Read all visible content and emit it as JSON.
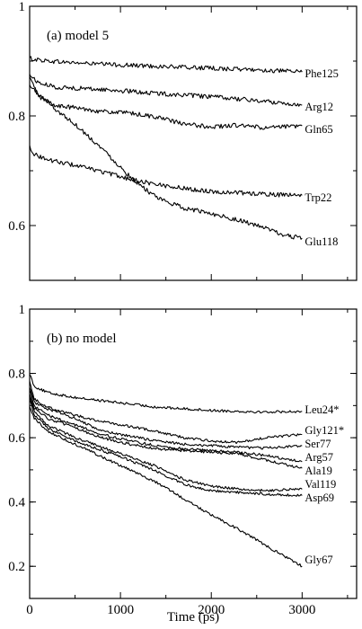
{
  "chart_data": [
    {
      "type": "line",
      "title": "(a) model 5",
      "xlabel": "",
      "ylabel": "",
      "xlim": [
        0,
        3600
      ],
      "ylim": [
        0.5,
        1.0
      ],
      "x_ticks": [
        0,
        1000,
        2000,
        3000
      ],
      "x_tick_labels": [
        "",
        "",
        "",
        ""
      ],
      "y_ticks": [
        0.6,
        0.8,
        1.0
      ],
      "y_tick_labels": [
        "0.6",
        "0.8",
        "1"
      ],
      "grid": false,
      "legend": "inline labels at line ends",
      "series": [
        {
          "name": "Phe125",
          "x": [
            0,
            100,
            300,
            600,
            1000,
            1500,
            2000,
            2500,
            3000
          ],
          "y": [
            0.905,
            0.902,
            0.899,
            0.896,
            0.893,
            0.89,
            0.887,
            0.884,
            0.88
          ]
        },
        {
          "name": "Arg12",
          "x": [
            0,
            100,
            300,
            600,
            1000,
            1500,
            2000,
            2500,
            3000
          ],
          "y": [
            0.875,
            0.86,
            0.852,
            0.85,
            0.846,
            0.84,
            0.835,
            0.828,
            0.82
          ]
        },
        {
          "name": "Gln65",
          "x": [
            0,
            100,
            300,
            500,
            800,
            1100,
            1400,
            1700,
            2000,
            2300,
            2600,
            3000
          ],
          "y": [
            0.87,
            0.835,
            0.818,
            0.815,
            0.808,
            0.805,
            0.798,
            0.785,
            0.78,
            0.783,
            0.778,
            0.782
          ]
        },
        {
          "name": "Trp22",
          "x": [
            0,
            50,
            200,
            500,
            800,
            1100,
            1400,
            1700,
            2000,
            2300,
            2600,
            3000
          ],
          "y": [
            0.745,
            0.73,
            0.72,
            0.71,
            0.698,
            0.685,
            0.675,
            0.668,
            0.662,
            0.66,
            0.657,
            0.655
          ]
        },
        {
          "name": "Glu118",
          "x": [
            0,
            100,
            300,
            500,
            800,
            1100,
            1400,
            1700,
            2000,
            2300,
            2600,
            2800,
            3000
          ],
          "y": [
            0.855,
            0.84,
            0.81,
            0.785,
            0.74,
            0.69,
            0.65,
            0.632,
            0.622,
            0.61,
            0.595,
            0.582,
            0.577
          ]
        }
      ]
    },
    {
      "type": "line",
      "title": "(b) no model",
      "xlabel": "Time (ps)",
      "ylabel": "",
      "xlim": [
        0,
        3600
      ],
      "ylim": [
        0.1,
        1.0
      ],
      "x_ticks": [
        0,
        1000,
        2000,
        3000
      ],
      "x_tick_labels": [
        "0",
        "1000",
        "2000",
        "3000"
      ],
      "y_ticks": [
        0.2,
        0.4,
        0.6,
        0.8,
        1.0
      ],
      "y_tick_labels": [
        "0.2",
        "0.4",
        "0.6",
        "0.8",
        "1"
      ],
      "grid": false,
      "legend": "inline labels at line ends",
      "series": [
        {
          "name": "Leu24*",
          "x": [
            0,
            50,
            200,
            500,
            800,
            1100,
            1400,
            1700,
            2000,
            2300,
            2600,
            3000
          ],
          "y": [
            0.8,
            0.76,
            0.74,
            0.725,
            0.715,
            0.705,
            0.695,
            0.69,
            0.685,
            0.682,
            0.68,
            0.682
          ]
        },
        {
          "name": "Gly121*",
          "x": [
            0,
            50,
            200,
            500,
            800,
            1100,
            1400,
            1700,
            2000,
            2300,
            2600,
            3000
          ],
          "y": [
            0.78,
            0.72,
            0.695,
            0.67,
            0.65,
            0.635,
            0.62,
            0.6,
            0.59,
            0.585,
            0.6,
            0.61
          ]
        },
        {
          "name": "Ser77",
          "x": [
            0,
            50,
            200,
            500,
            800,
            1100,
            1400,
            1700,
            2000,
            2300,
            2600,
            3000
          ],
          "y": [
            0.76,
            0.71,
            0.69,
            0.66,
            0.62,
            0.605,
            0.59,
            0.58,
            0.575,
            0.57,
            0.568,
            0.575
          ]
        },
        {
          "name": "Arg57",
          "x": [
            0,
            50,
            200,
            500,
            800,
            1100,
            1400,
            1700,
            2000,
            2300,
            2600,
            3000
          ],
          "y": [
            0.75,
            0.7,
            0.67,
            0.64,
            0.61,
            0.59,
            0.575,
            0.565,
            0.56,
            0.555,
            0.545,
            0.525
          ]
        },
        {
          "name": "Ala19",
          "x": [
            0,
            50,
            200,
            500,
            800,
            1100,
            1400,
            1700,
            2000,
            2300,
            2600,
            3000
          ],
          "y": [
            0.74,
            0.69,
            0.66,
            0.63,
            0.6,
            0.58,
            0.565,
            0.56,
            0.555,
            0.55,
            0.53,
            0.505
          ]
        },
        {
          "name": "Val119",
          "x": [
            0,
            50,
            200,
            500,
            800,
            1100,
            1400,
            1700,
            2000,
            2300,
            2600,
            3000
          ],
          "y": [
            0.73,
            0.68,
            0.64,
            0.6,
            0.57,
            0.54,
            0.51,
            0.47,
            0.45,
            0.44,
            0.435,
            0.44
          ]
        },
        {
          "name": "Asp69",
          "x": [
            0,
            50,
            200,
            500,
            800,
            1100,
            1400,
            1700,
            2000,
            2300,
            2600,
            3000
          ],
          "y": [
            0.72,
            0.67,
            0.63,
            0.59,
            0.56,
            0.53,
            0.495,
            0.455,
            0.435,
            0.43,
            0.425,
            0.42
          ]
        },
        {
          "name": "Gly67",
          "x": [
            0,
            50,
            200,
            500,
            800,
            1100,
            1400,
            1700,
            2000,
            2300,
            2600,
            3000
          ],
          "y": [
            0.7,
            0.66,
            0.62,
            0.58,
            0.54,
            0.5,
            0.46,
            0.41,
            0.36,
            0.315,
            0.265,
            0.2
          ]
        }
      ]
    }
  ]
}
